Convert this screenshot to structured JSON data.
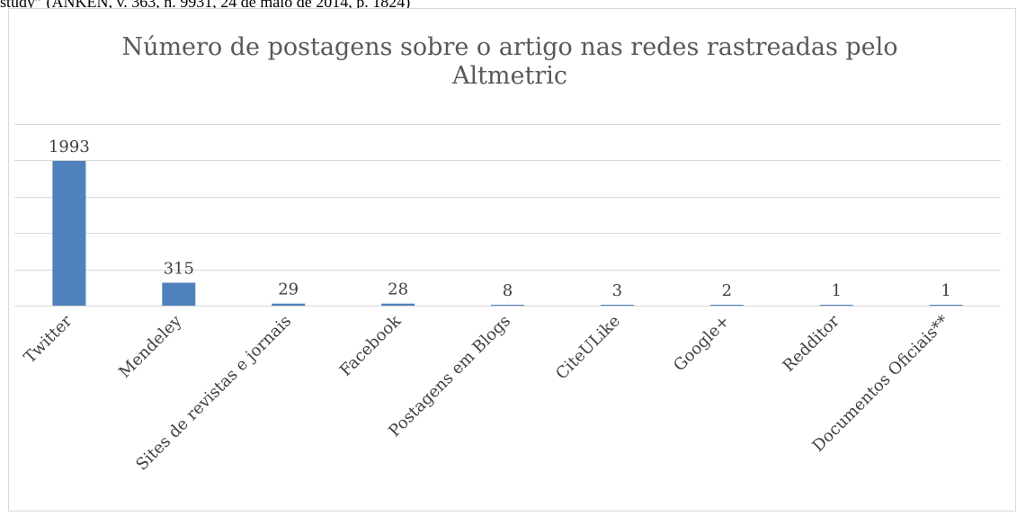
{
  "page": {
    "caption_fragment": "study” (ANKEN, v. 363, n. 9931, 24 de maio de 2014, p. 1824)"
  },
  "chart_data": {
    "type": "bar",
    "title": "Número de postagens sobre o artigo nas redes rastreadas pelo Altmetric",
    "title_lines": [
      "Número de postagens sobre o artigo nas redes rastreadas pelo",
      "Altmetric"
    ],
    "categories": [
      "Twitter",
      "Mendeley",
      "Sites de revistas e jornais",
      "Facebook",
      "Postagens em Blogs",
      "CiteULike",
      "Google+",
      "Redditor",
      "Documentos Oficiais**"
    ],
    "values": [
      1993,
      315,
      29,
      28,
      8,
      3,
      2,
      1,
      1
    ],
    "value_labels": [
      "1993",
      "315",
      "29",
      "28",
      "8",
      "3",
      "2",
      "1",
      "1"
    ],
    "ylim": [
      0,
      2500
    ],
    "y_tick_step": 500,
    "y_tick_labels_shown": false,
    "grid": true,
    "legend": "none",
    "colors": {
      "bar": "#4f81bd",
      "grid": "#d9d9d9",
      "text": "#404040",
      "title": "#595959"
    }
  }
}
